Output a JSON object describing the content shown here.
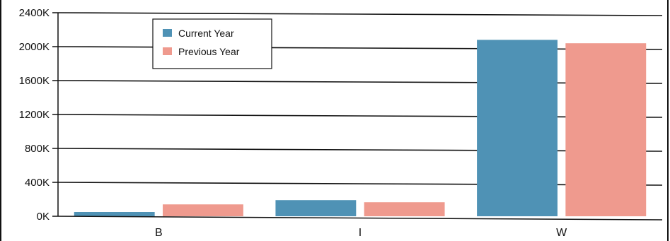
{
  "chart_data": {
    "type": "bar",
    "categories": [
      "B",
      "I",
      "W"
    ],
    "series": [
      {
        "name": "Current Year",
        "values": [
          50,
          190,
          2080
        ]
      },
      {
        "name": "Previous Year",
        "values": [
          140,
          165,
          2040
        ]
      }
    ],
    "yticks": [
      "0K",
      "400K",
      "800K",
      "1200K",
      "1600K",
      "2000K",
      "2400K"
    ],
    "ylim": [
      0,
      2400
    ],
    "grid": true,
    "legend_position": "top-left",
    "colors": {
      "Current Year": "#4f92b5",
      "Previous Year": "#ef9a8e",
      "axis": "#111111",
      "grid": "#111111"
    }
  }
}
